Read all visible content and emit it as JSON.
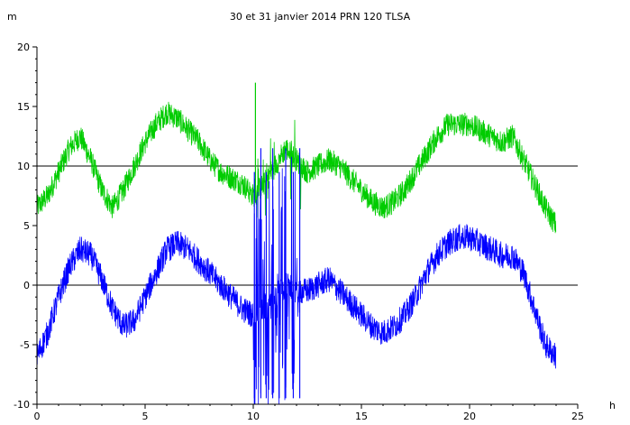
{
  "chart_data": {
    "type": "line",
    "title": "30 et 31 janvier 2014 PRN 120 TLSA",
    "xlabel": "h",
    "ylabel": "m",
    "xlim": [
      0,
      25
    ],
    "ylim": [
      -10,
      20
    ],
    "xticks": [
      0,
      5,
      10,
      15,
      20,
      25
    ],
    "yticks": [
      -10,
      -5,
      0,
      5,
      10,
      15,
      20
    ],
    "reference_lines": [
      0,
      10
    ],
    "colors": {
      "upper": "#00cc00",
      "lower": "#0000ff",
      "reference": "#000000"
    },
    "series": [
      {
        "color": "#00cc00",
        "x": [
          0,
          0.5,
          1,
          1.5,
          2,
          2.5,
          3,
          3.5,
          4,
          4.5,
          5,
          5.5,
          6,
          6.5,
          7,
          7.5,
          8,
          8.5,
          9,
          9.5,
          10,
          10.5,
          11,
          11.5,
          12,
          12.5,
          13,
          13.5,
          14,
          14.5,
          15,
          15.5,
          16,
          16.5,
          17,
          17.5,
          18,
          18.5,
          19,
          19.5,
          20,
          20.5,
          21,
          21.5,
          22,
          22.5,
          23,
          23.5,
          24
        ],
        "values": [
          6.5,
          7.5,
          9.5,
          11.5,
          12.5,
          10.5,
          8,
          6.5,
          8,
          10,
          12,
          13.5,
          14.5,
          14,
          13,
          12,
          10.5,
          9.5,
          9,
          8.5,
          7.5,
          8.5,
          10,
          11.5,
          10.5,
          9.5,
          10,
          10.5,
          10,
          9,
          8,
          7,
          6.5,
          7,
          8,
          9.5,
          11,
          12.5,
          13.5,
          13.5,
          13.5,
          13,
          12.5,
          12,
          12.5,
          10.5,
          8.5,
          6.5,
          5
        ]
      },
      {
        "color": "#0000ff",
        "x": [
          0,
          0.5,
          1,
          1.5,
          2,
          2.5,
          3,
          3.5,
          4,
          4.5,
          5,
          5.5,
          6,
          6.5,
          7,
          7.5,
          8,
          8.5,
          9,
          9.5,
          10,
          10.5,
          11,
          11.5,
          12,
          12.5,
          13,
          13.5,
          14,
          14.5,
          15,
          15.5,
          16,
          16.5,
          17,
          17.5,
          18,
          18.5,
          19,
          19.5,
          20,
          20.5,
          21,
          21.5,
          22,
          22.5,
          23,
          23.5,
          24
        ],
        "values": [
          -6,
          -4,
          -1,
          1.5,
          3,
          2.5,
          0.5,
          -2,
          -3.5,
          -3,
          -1,
          1,
          3,
          3.5,
          3,
          2,
          1,
          0,
          -1,
          -2,
          -2.5,
          -2,
          -1,
          0,
          -0.5,
          -0.5,
          0,
          0.5,
          -0.5,
          -1.5,
          -2.5,
          -3.5,
          -4,
          -3.5,
          -2.5,
          -1,
          1,
          2.5,
          3.5,
          4,
          4,
          3.5,
          3,
          2.5,
          2.5,
          1,
          -2,
          -5,
          -6
        ]
      }
    ]
  }
}
